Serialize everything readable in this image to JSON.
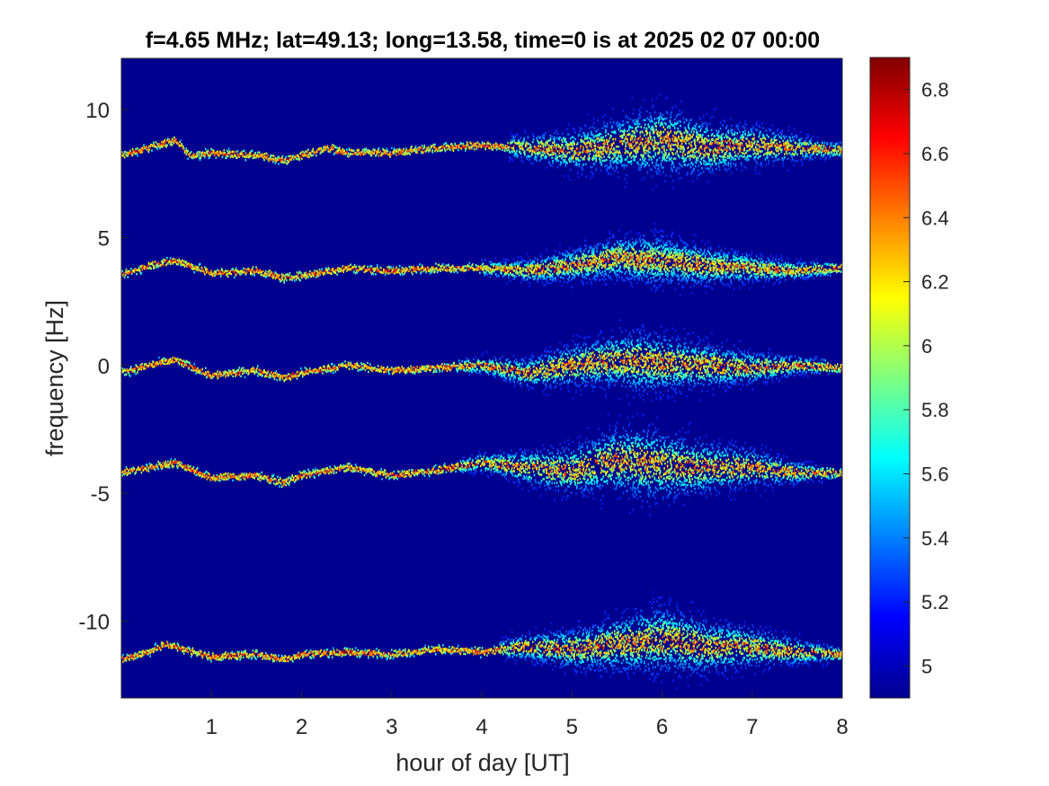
{
  "chart_data": {
    "type": "heatmap",
    "title": "f=4.65 MHz;  lat=49.13; long=13.58, time=0 is at 2025 02 07 00:00",
    "xlabel": "hour of day [UT]",
    "ylabel": "frequency [Hz]",
    "xlim": [
      0,
      8
    ],
    "ylim": [
      -13.0,
      12.0
    ],
    "xticks": [
      1,
      2,
      3,
      4,
      5,
      6,
      7,
      8
    ],
    "yticks": [
      -10,
      -5,
      0,
      5,
      10
    ],
    "colormap": "jet",
    "background_color": "#00008f",
    "colorbar": {
      "clim": [
        4.9,
        6.9
      ],
      "ticks": [
        5,
        5.2,
        5.4,
        5.6,
        5.8,
        6,
        6.2,
        6.4,
        6.6,
        6.8
      ]
    },
    "traces": [
      {
        "x": [
          0,
          0.3,
          0.6,
          0.75,
          1.0,
          1.5,
          1.8,
          2.0,
          2.3,
          2.5,
          3.0,
          3.5,
          4.0,
          4.5,
          5.0,
          5.5,
          6.0,
          6.5,
          7.0,
          7.5,
          8.0
        ],
        "freq": [
          8.2,
          8.5,
          8.8,
          8.2,
          8.3,
          8.2,
          8.0,
          8.2,
          8.5,
          8.3,
          8.3,
          8.5,
          8.6,
          8.5,
          8.4,
          8.6,
          8.8,
          8.5,
          8.6,
          8.5,
          8.4
        ],
        "spread_start": 4.3,
        "spread_peak": 6.0,
        "spread_width": 1.0
      },
      {
        "x": [
          0,
          0.3,
          0.6,
          1.0,
          1.5,
          1.8,
          2.0,
          2.5,
          3.0,
          3.5,
          4.0,
          4.5,
          5.0,
          5.5,
          6.0,
          6.5,
          7.0,
          7.5,
          8.0
        ],
        "freq": [
          3.5,
          3.9,
          4.1,
          3.6,
          3.7,
          3.4,
          3.5,
          3.8,
          3.7,
          3.8,
          3.8,
          3.7,
          3.9,
          4.2,
          4.1,
          3.9,
          3.8,
          3.7,
          3.8
        ],
        "spread_start": 4.0,
        "spread_peak": 5.9,
        "spread_width": 0.7
      },
      {
        "x": [
          0,
          0.3,
          0.6,
          1.0,
          1.5,
          1.8,
          2.0,
          2.5,
          3.0,
          3.5,
          4.0,
          4.5,
          5.0,
          5.5,
          6.0,
          6.5,
          7.0,
          7.5,
          8.0
        ],
        "freq": [
          -0.3,
          0.0,
          0.2,
          -0.4,
          -0.2,
          -0.5,
          -0.3,
          0.0,
          -0.2,
          -0.1,
          0.0,
          -0.3,
          0.0,
          0.2,
          0.1,
          0.0,
          -0.1,
          0.0,
          -0.1
        ],
        "spread_start": 3.5,
        "spread_peak": 5.8,
        "spread_width": 0.9
      },
      {
        "x": [
          0,
          0.3,
          0.6,
          1.0,
          1.5,
          1.8,
          2.0,
          2.5,
          3.0,
          3.5,
          4.0,
          4.5,
          5.0,
          5.5,
          6.0,
          6.5,
          7.0,
          7.5,
          8.0
        ],
        "freq": [
          -4.2,
          -4.0,
          -3.8,
          -4.4,
          -4.3,
          -4.6,
          -4.3,
          -4.0,
          -4.3,
          -4.1,
          -3.8,
          -4.0,
          -4.1,
          -3.7,
          -3.9,
          -4.0,
          -4.0,
          -4.2,
          -4.2
        ],
        "spread_start": 3.0,
        "spread_peak": 5.8,
        "spread_width": 1.1
      },
      {
        "x": [
          0,
          0.3,
          0.5,
          1.0,
          1.5,
          1.8,
          2.0,
          2.5,
          3.0,
          3.5,
          4.0,
          4.5,
          5.0,
          5.5,
          6.0,
          6.5,
          7.0,
          7.5,
          8.0
        ],
        "freq": [
          -11.5,
          -11.2,
          -10.9,
          -11.4,
          -11.3,
          -11.5,
          -11.3,
          -11.2,
          -11.3,
          -11.1,
          -11.2,
          -11.0,
          -11.1,
          -10.9,
          -10.7,
          -11.0,
          -11.0,
          -11.2,
          -11.3
        ],
        "spread_start": 4.2,
        "spread_peak": 6.0,
        "spread_width": 1.0
      }
    ]
  }
}
